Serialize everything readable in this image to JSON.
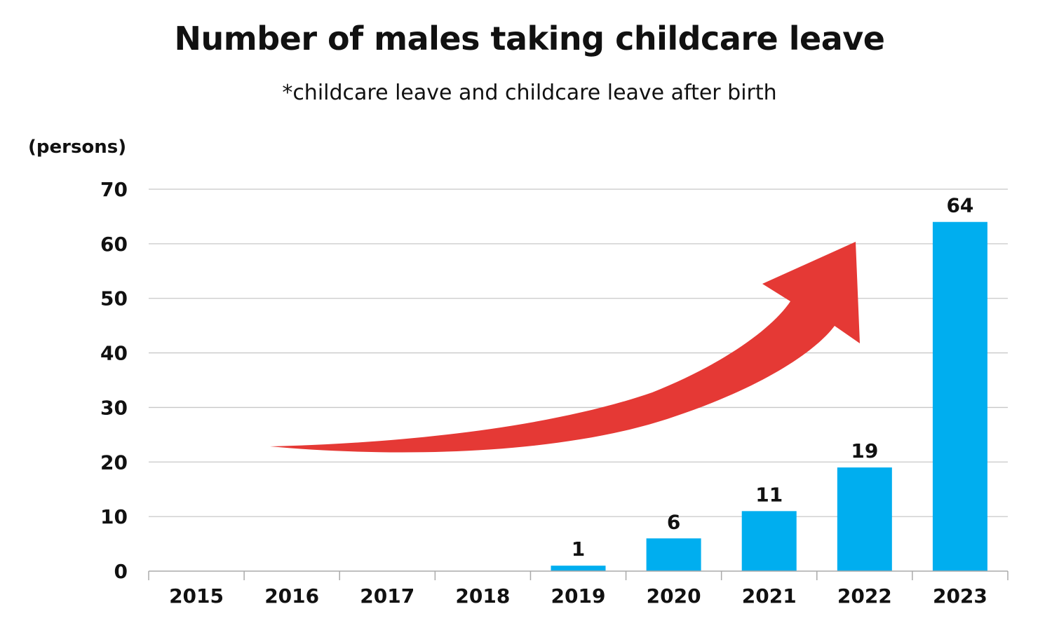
{
  "chart_data": {
    "type": "bar",
    "title": "Number of males taking childcare leave",
    "subtitle": "*childcare leave and childcare leave after birth",
    "ylabel": "(persons)",
    "xlabel": "",
    "categories": [
      "2015",
      "2016",
      "2017",
      "2018",
      "2019",
      "2020",
      "2021",
      "2022",
      "2023"
    ],
    "values": [
      0,
      0,
      0,
      0,
      1,
      6,
      11,
      19,
      64
    ],
    "data_labels": [
      "",
      "",
      "",
      "",
      "1",
      "6",
      "11",
      "19",
      "64"
    ],
    "ylim": [
      0,
      70
    ],
    "yticks": [
      0,
      10,
      20,
      30,
      40,
      50,
      60,
      70
    ],
    "grid": true,
    "legend": "none",
    "bar_color": "#00AEEF",
    "annotation": {
      "type": "trend-arrow",
      "direction": "upward",
      "color": "#E53935"
    }
  }
}
